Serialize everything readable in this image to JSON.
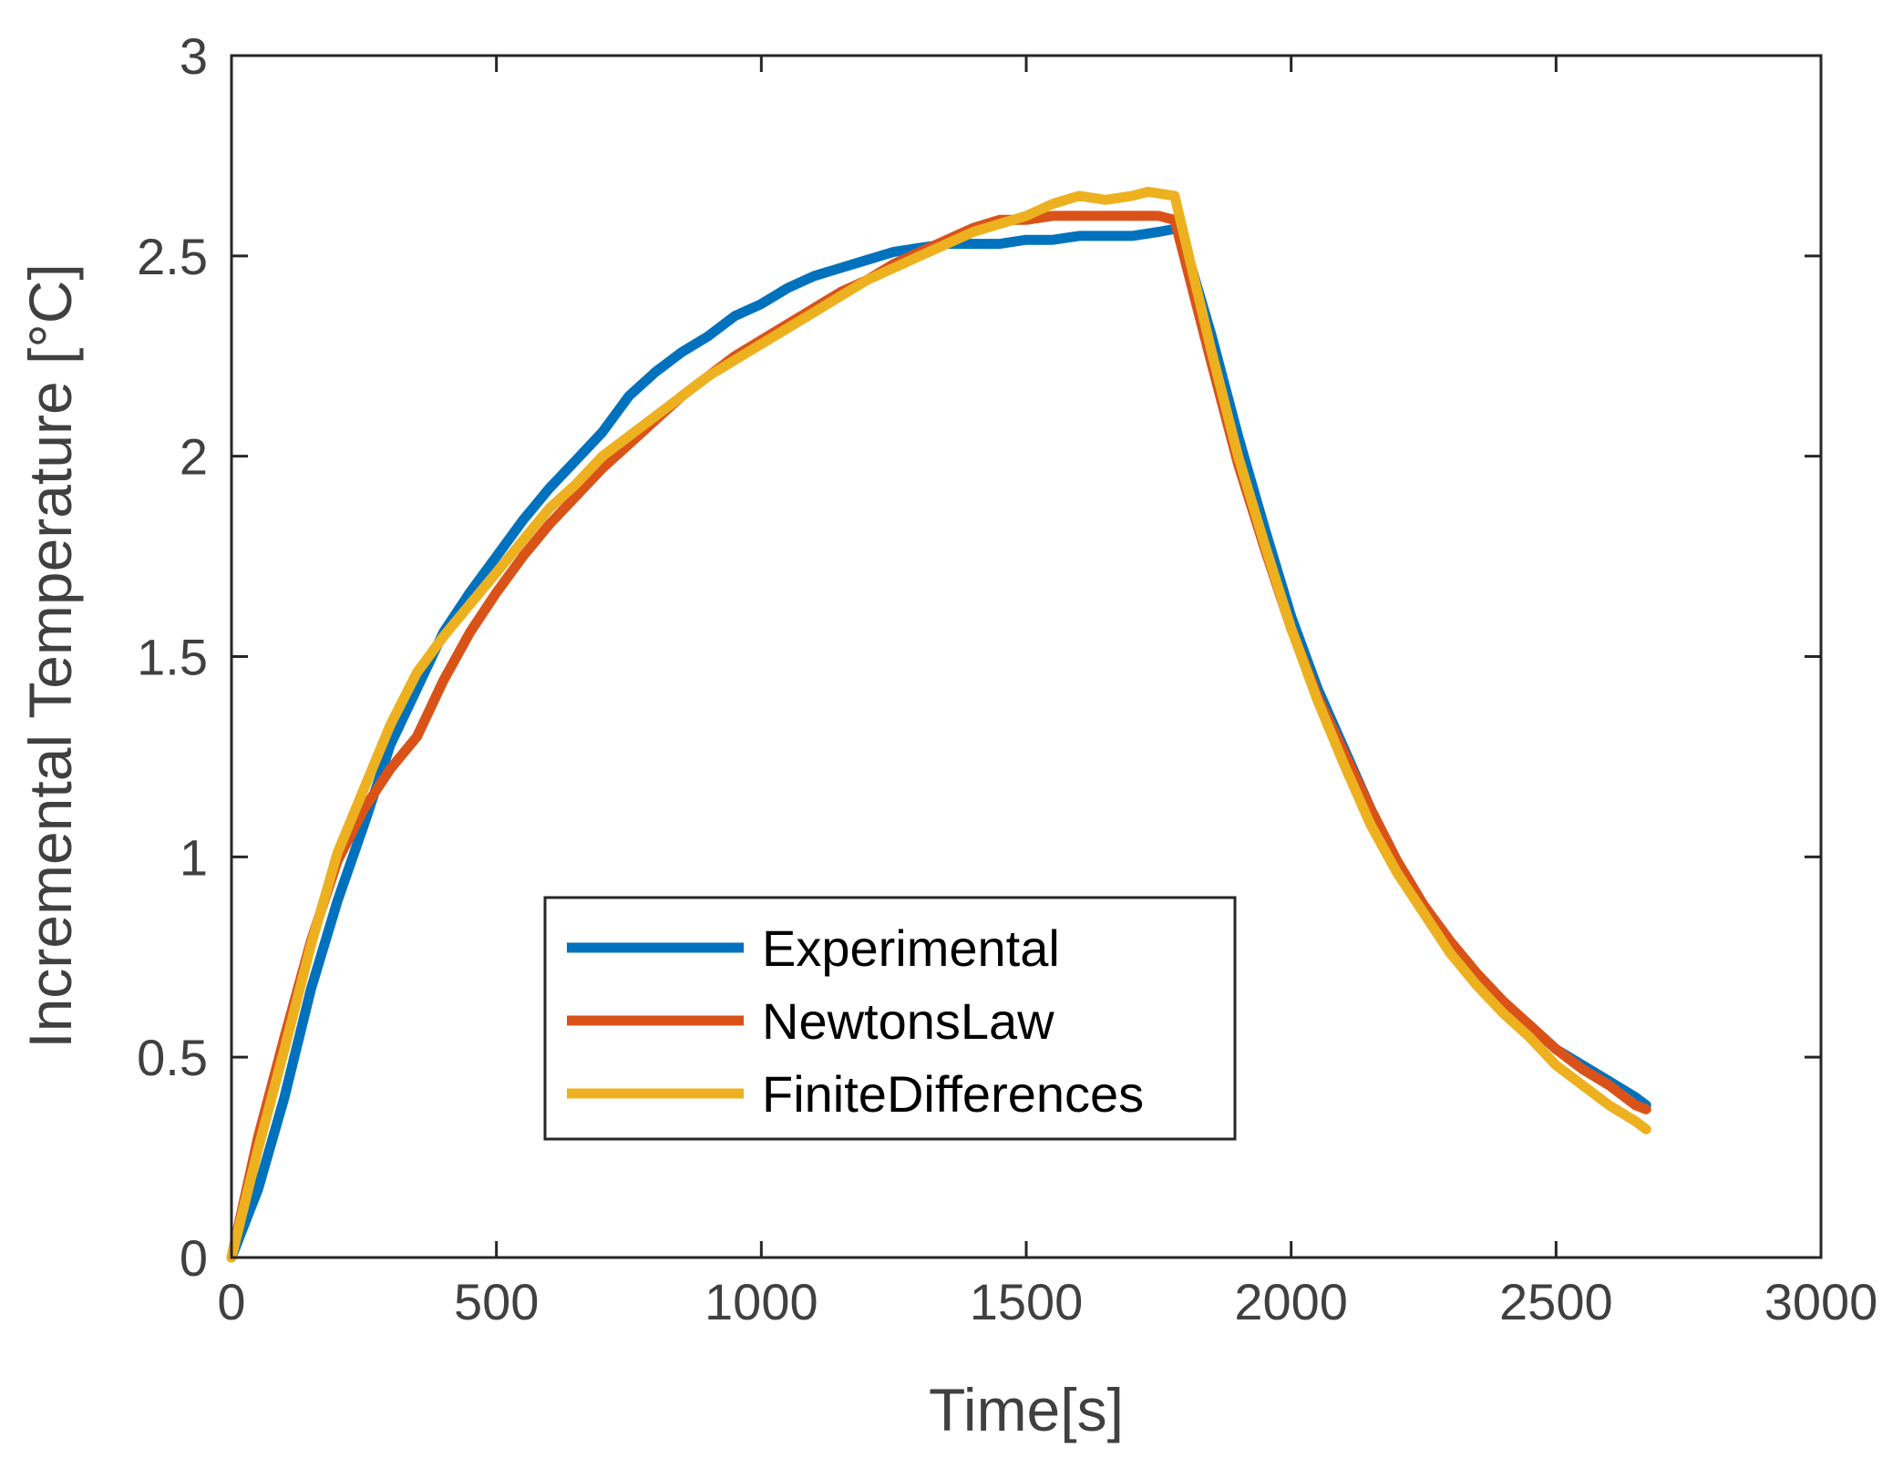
{
  "chart_data": {
    "type": "line",
    "title": "",
    "xlabel": "Time[s]",
    "ylabel": "Incremental Temperature [°C]",
    "xlim": [
      0,
      3000
    ],
    "ylim": [
      0,
      3
    ],
    "xticks": [
      0,
      500,
      1000,
      1500,
      2000,
      2500,
      3000
    ],
    "xtick_labels": [
      "0",
      "500",
      "1000",
      "1500",
      "2000",
      "2500",
      "3000"
    ],
    "yticks": [
      0,
      0.5,
      1,
      1.5,
      2,
      2.5,
      3
    ],
    "ytick_labels": [
      "0",
      "0.5",
      "1",
      "1.5",
      "2",
      "2.5",
      "3"
    ],
    "grid": false,
    "legend_position": "center",
    "series": [
      {
        "name": "Experimental",
        "color": "#0072BD",
        "x": [
          0,
          50,
          100,
          150,
          200,
          250,
          300,
          350,
          400,
          450,
          500,
          550,
          600,
          650,
          700,
          750,
          800,
          850,
          900,
          950,
          1000,
          1050,
          1100,
          1150,
          1200,
          1250,
          1300,
          1350,
          1400,
          1450,
          1500,
          1550,
          1600,
          1650,
          1700,
          1750,
          1790,
          1850,
          1900,
          1950,
          2000,
          2050,
          2100,
          2150,
          2200,
          2250,
          2300,
          2350,
          2400,
          2450,
          2500,
          2550,
          2600,
          2650,
          2670
        ],
        "y": [
          0,
          0.17,
          0.4,
          0.67,
          0.89,
          1.08,
          1.28,
          1.42,
          1.56,
          1.66,
          1.75,
          1.84,
          1.92,
          1.99,
          2.06,
          2.15,
          2.21,
          2.26,
          2.3,
          2.35,
          2.38,
          2.42,
          2.45,
          2.47,
          2.49,
          2.51,
          2.52,
          2.53,
          2.53,
          2.53,
          2.54,
          2.54,
          2.55,
          2.55,
          2.55,
          2.56,
          2.57,
          2.3,
          2.05,
          1.82,
          1.6,
          1.42,
          1.27,
          1.12,
          0.98,
          0.87,
          0.78,
          0.7,
          0.63,
          0.58,
          0.52,
          0.48,
          0.44,
          0.4,
          0.38
        ]
      },
      {
        "name": "NewtonsLaw",
        "color": "#D95319",
        "x": [
          0,
          50,
          100,
          150,
          200,
          250,
          300,
          350,
          400,
          450,
          500,
          550,
          600,
          650,
          700,
          750,
          800,
          850,
          900,
          950,
          1000,
          1050,
          1100,
          1150,
          1200,
          1250,
          1300,
          1350,
          1400,
          1450,
          1500,
          1550,
          1600,
          1650,
          1700,
          1750,
          1780,
          1850,
          1900,
          1950,
          2000,
          2050,
          2100,
          2150,
          2200,
          2250,
          2300,
          2350,
          2400,
          2450,
          2500,
          2550,
          2600,
          2650,
          2670
        ],
        "y": [
          0,
          0.3,
          0.55,
          0.79,
          0.99,
          1.12,
          1.22,
          1.3,
          1.44,
          1.56,
          1.66,
          1.75,
          1.83,
          1.9,
          1.97,
          2.03,
          2.09,
          2.15,
          2.2,
          2.25,
          2.29,
          2.33,
          2.37,
          2.41,
          2.44,
          2.48,
          2.51,
          2.54,
          2.57,
          2.59,
          2.59,
          2.6,
          2.6,
          2.6,
          2.6,
          2.6,
          2.59,
          2.23,
          1.98,
          1.77,
          1.57,
          1.4,
          1.26,
          1.12,
          0.99,
          0.88,
          0.79,
          0.71,
          0.64,
          0.58,
          0.52,
          0.47,
          0.43,
          0.38,
          0.37
        ]
      },
      {
        "name": "FiniteDifferences",
        "color": "#EDB120",
        "x": [
          0,
          50,
          100,
          150,
          200,
          250,
          300,
          350,
          400,
          450,
          500,
          550,
          600,
          650,
          700,
          750,
          800,
          850,
          900,
          950,
          1000,
          1050,
          1100,
          1150,
          1200,
          1250,
          1300,
          1350,
          1400,
          1450,
          1500,
          1550,
          1600,
          1650,
          1700,
          1730,
          1780,
          1850,
          1900,
          1950,
          2000,
          2050,
          2100,
          2150,
          2200,
          2250,
          2300,
          2350,
          2400,
          2450,
          2500,
          2550,
          2600,
          2650,
          2670
        ],
        "y": [
          0,
          0.27,
          0.52,
          0.78,
          1.01,
          1.17,
          1.33,
          1.46,
          1.55,
          1.63,
          1.71,
          1.79,
          1.87,
          1.93,
          2.0,
          2.05,
          2.1,
          2.15,
          2.2,
          2.24,
          2.28,
          2.32,
          2.36,
          2.4,
          2.44,
          2.47,
          2.5,
          2.53,
          2.56,
          2.58,
          2.6,
          2.63,
          2.65,
          2.64,
          2.65,
          2.66,
          2.65,
          2.26,
          2.0,
          1.78,
          1.57,
          1.39,
          1.23,
          1.08,
          0.96,
          0.86,
          0.76,
          0.68,
          0.61,
          0.55,
          0.48,
          0.43,
          0.38,
          0.34,
          0.32
        ]
      }
    ]
  }
}
